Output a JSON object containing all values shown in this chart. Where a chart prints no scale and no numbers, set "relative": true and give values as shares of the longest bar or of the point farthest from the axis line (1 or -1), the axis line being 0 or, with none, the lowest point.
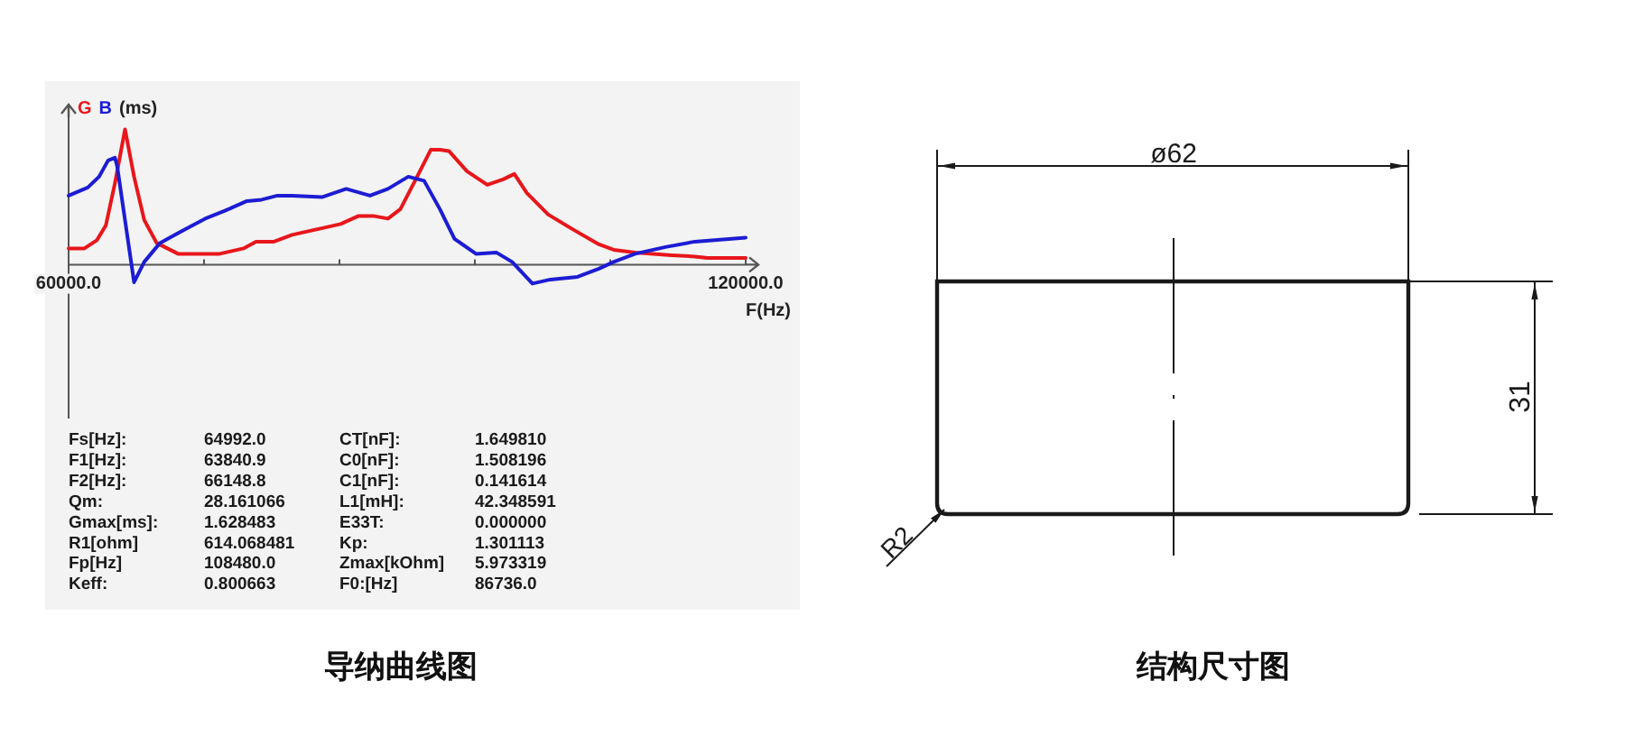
{
  "chart_data": [
    {
      "type": "line",
      "title": "导纳曲线图",
      "xlabel": "F(Hz)",
      "ylabel": "(ms)",
      "relative": true,
      "xlim": [
        60000,
        120000
      ],
      "xticks": [
        {
          "value": 60000,
          "label": "60000.0"
        },
        {
          "value": 72000,
          "label": null
        },
        {
          "value": 84000,
          "label": null
        },
        {
          "value": 96000,
          "label": null
        },
        {
          "value": 108000,
          "label": null
        },
        {
          "value": 120000,
          "label": "120000.0"
        }
      ],
      "legend": "top left",
      "series": [
        {
          "name": "G",
          "color": "#e8161b",
          "x": [
            60000,
            61400,
            62500,
            63300,
            64100,
            65000,
            65800,
            66700,
            67800,
            69700,
            73400,
            75500,
            76600,
            78200,
            79800,
            82500,
            84100,
            85700,
            87000,
            88300,
            89400,
            90700,
            92100,
            92900,
            93700,
            95300,
            97100,
            98500,
            99500,
            100600,
            102500,
            104900,
            107000,
            108300,
            110200,
            113400,
            115500,
            116600,
            120000
          ],
          "values": [
            0.12,
            0.12,
            0.18,
            0.29,
            0.6,
            1,
            0.65,
            0.33,
            0.16,
            0.08,
            0.08,
            0.12,
            0.17,
            0.17,
            0.22,
            0.27,
            0.3,
            0.36,
            0.36,
            0.34,
            0.41,
            0.62,
            0.85,
            0.85,
            0.84,
            0.69,
            0.59,
            0.63,
            0.67,
            0.53,
            0.37,
            0.25,
            0.15,
            0.11,
            0.09,
            0.07,
            0.06,
            0.05,
            0.05
          ]
        },
        {
          "name": "B",
          "color": "#1c1cd4",
          "x": [
            60000,
            61700,
            62700,
            63500,
            64100,
            64300,
            65800,
            66700,
            68100,
            69400,
            72100,
            73900,
            75800,
            77100,
            78500,
            79800,
            82500,
            84600,
            86700,
            88300,
            90100,
            91500,
            92900,
            94200,
            96100,
            97900,
            99300,
            101100,
            102700,
            105100,
            107000,
            108300,
            110200,
            112900,
            115500,
            120000
          ],
          "values": [
            0.51,
            0.57,
            0.65,
            0.77,
            0.79,
            0.73,
            -0.13,
            0.02,
            0.16,
            0.22,
            0.34,
            0.4,
            0.47,
            0.48,
            0.51,
            0.51,
            0.5,
            0.56,
            0.51,
            0.56,
            0.65,
            0.62,
            0.41,
            0.19,
            0.08,
            0.09,
            0.02,
            -0.14,
            -0.11,
            -0.09,
            -0.03,
            0.02,
            0.08,
            0.13,
            0.17,
            0.2
          ]
        }
      ],
      "annotations": [
        "Fs[Hz]:",
        "64992.0",
        "CT[nF]:",
        "1.649810",
        "F1[Hz]:",
        "63840.9",
        "C0[nF]:",
        "1.508196",
        "F2[Hz]:",
        "66148.8",
        "C1[nF]:",
        "0.141614",
        "Qm:",
        "28.161066",
        "L1[mH]:",
        "42.348591",
        "Gmax[ms]:",
        "1.628483",
        "E33T:",
        "0.000000",
        "R1[ohm]",
        "614.068481",
        "Kp:",
        "1.301113",
        "Fp[Hz]",
        "108480.0",
        "Zmax[kOhm]",
        "5.973319",
        "Keff:",
        "0.800663",
        "F0:[Hz]",
        "86736.0"
      ]
    },
    {
      "type": "other",
      "title": "结构尺寸图",
      "annotations": [
        "ø62",
        "31",
        "R2"
      ]
    }
  ]
}
